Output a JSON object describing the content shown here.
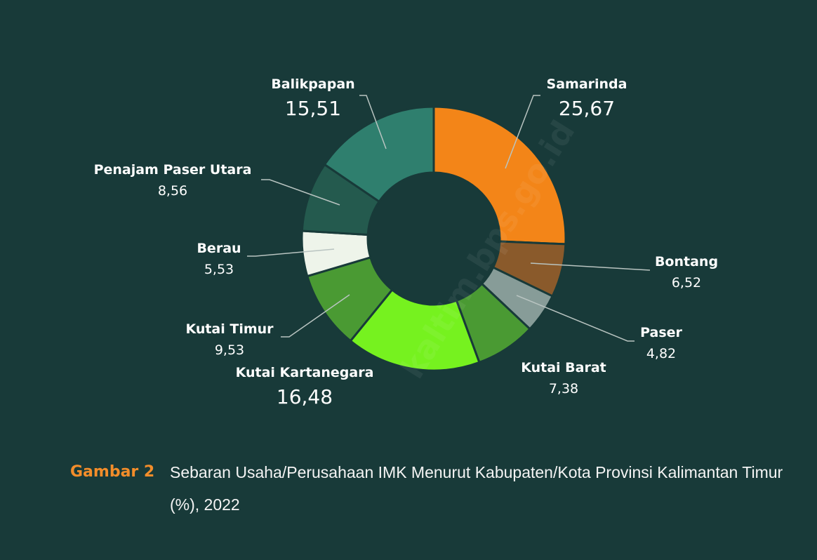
{
  "chart_data": {
    "type": "pie",
    "donut": true,
    "categories": [
      "Samarinda",
      "Bontang",
      "Paser",
      "Kutai Barat",
      "Kutai Kartanegara",
      "Kutai Timur",
      "Berau",
      "Penajam Paser Utara",
      "Balikpapan"
    ],
    "value_labels": [
      "25,67",
      "6,52",
      "4,82",
      "7,38",
      "16,48",
      "9,53",
      "5,53",
      "8,56",
      "15,51"
    ],
    "values": [
      25.67,
      6.52,
      4.82,
      7.38,
      16.48,
      9.53,
      5.53,
      8.56,
      15.51
    ],
    "colors": [
      "#f38518",
      "#8a5a2b",
      "#879c98",
      "#4a9a33",
      "#76f21f",
      "#4a9a33",
      "#eef4ea",
      "#245a4e",
      "#2f7f6e"
    ],
    "title": "",
    "legend": "none"
  },
  "caption": {
    "label": "Gambar 2",
    "text": "Sebaran Usaha/Perusahaan IMK Menurut Kabupaten/Kota Provinsi Kalimantan Timur (%), 2022"
  },
  "watermark": "kaltim.bps.go.id",
  "colors": {
    "background": "#183a39",
    "caption_label": "#f38d2a"
  }
}
